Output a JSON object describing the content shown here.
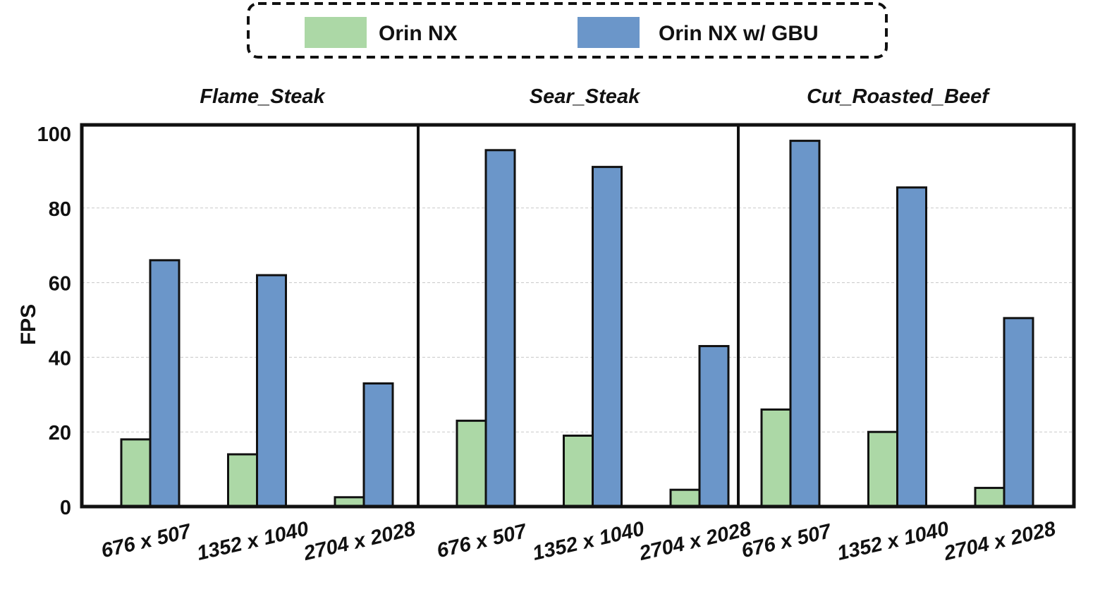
{
  "legend": {
    "items": [
      {
        "label": "Orin NX",
        "color": "#acd8a6"
      },
      {
        "label": "Orin NX w/ GBU",
        "color": "#6b96c9"
      }
    ]
  },
  "chart_data": {
    "type": "bar",
    "ylabel": "FPS",
    "ylim": [
      0,
      100
    ],
    "yticks": [
      0,
      20,
      40,
      60,
      80,
      100
    ],
    "grid": true,
    "legend_position": "top-center",
    "categories": [
      "676 x 507",
      "1352 x 1040",
      "2704 x 2028"
    ],
    "panels": [
      {
        "title": "Flame_Steak",
        "series": [
          {
            "name": "Orin NX",
            "values": [
              18,
              14,
              2.5
            ]
          },
          {
            "name": "Orin NX w/ GBU",
            "values": [
              66,
              62,
              33
            ]
          }
        ]
      },
      {
        "title": "Sear_Steak",
        "series": [
          {
            "name": "Orin NX",
            "values": [
              23,
              19,
              4.5
            ]
          },
          {
            "name": "Orin NX w/ GBU",
            "values": [
              95.5,
              91,
              43
            ]
          }
        ]
      },
      {
        "title": "Cut_Roasted_Beef",
        "series": [
          {
            "name": "Orin NX",
            "values": [
              26,
              20,
              5
            ]
          },
          {
            "name": "Orin NX w/ GBU",
            "values": [
              98,
              85.5,
              50.5
            ]
          }
        ]
      }
    ]
  }
}
